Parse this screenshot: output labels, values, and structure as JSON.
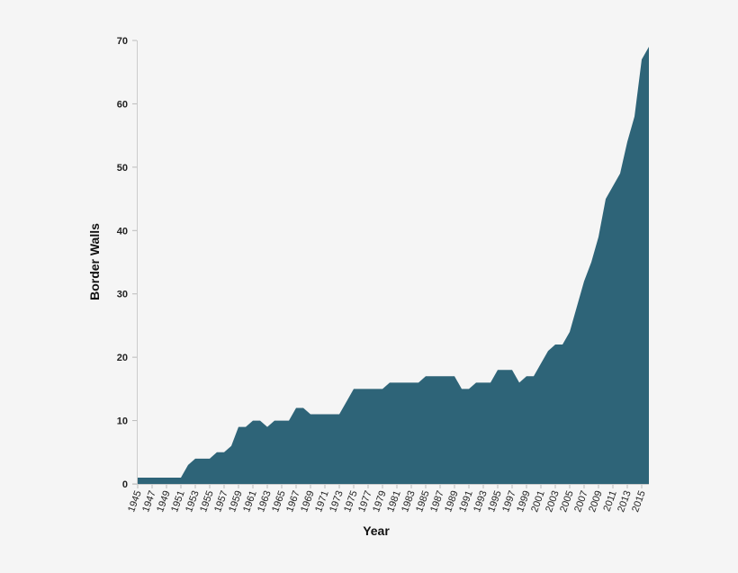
{
  "chart_data": {
    "type": "area",
    "title": "",
    "xlabel": "Year",
    "ylabel": "Border Walls",
    "ylim": [
      0,
      70
    ],
    "xlim": [
      1945,
      2016
    ],
    "grid": false,
    "legend": null,
    "fill_color": "#2e6478",
    "background_color": "#f5f5f5",
    "y_ticks": [
      0,
      10,
      20,
      30,
      40,
      50,
      60,
      70
    ],
    "x_tick_labels": [
      "1945",
      "1947",
      "1949",
      "1951",
      "1953",
      "1955",
      "1957",
      "1959",
      "1961",
      "1963",
      "1965",
      "1967",
      "1969",
      "1971",
      "1973",
      "1975",
      "1977",
      "1979",
      "1981",
      "1983",
      "1985",
      "1987",
      "1989",
      "1991",
      "1993",
      "1995",
      "1997",
      "1999",
      "2001",
      "2003",
      "2005",
      "2007",
      "2009",
      "2011",
      "2013",
      "2015"
    ],
    "x": [
      1945,
      1946,
      1947,
      1948,
      1949,
      1950,
      1951,
      1952,
      1953,
      1954,
      1955,
      1956,
      1957,
      1958,
      1959,
      1960,
      1961,
      1962,
      1963,
      1964,
      1965,
      1966,
      1967,
      1968,
      1969,
      1970,
      1971,
      1972,
      1973,
      1974,
      1975,
      1976,
      1977,
      1978,
      1979,
      1980,
      1981,
      1982,
      1983,
      1984,
      1985,
      1986,
      1987,
      1988,
      1989,
      1990,
      1991,
      1992,
      1993,
      1994,
      1995,
      1996,
      1997,
      1998,
      1999,
      2000,
      2001,
      2002,
      2003,
      2004,
      2005,
      2006,
      2007,
      2008,
      2009,
      2010,
      2011,
      2012,
      2013,
      2014,
      2015,
      2016
    ],
    "values": [
      1,
      1,
      1,
      1,
      1,
      1,
      1,
      3,
      4,
      4,
      4,
      5,
      5,
      6,
      9,
      9,
      10,
      10,
      9,
      10,
      10,
      10,
      12,
      12,
      11,
      11,
      11,
      11,
      11,
      13,
      15,
      15,
      15,
      15,
      15,
      16,
      16,
      16,
      16,
      16,
      17,
      17,
      17,
      17,
      17,
      15,
      15,
      16,
      16,
      16,
      18,
      18,
      18,
      16,
      17,
      17,
      19,
      21,
      22,
      22,
      24,
      28,
      32,
      35,
      39,
      45,
      47,
      49,
      54,
      58,
      67,
      69
    ]
  }
}
